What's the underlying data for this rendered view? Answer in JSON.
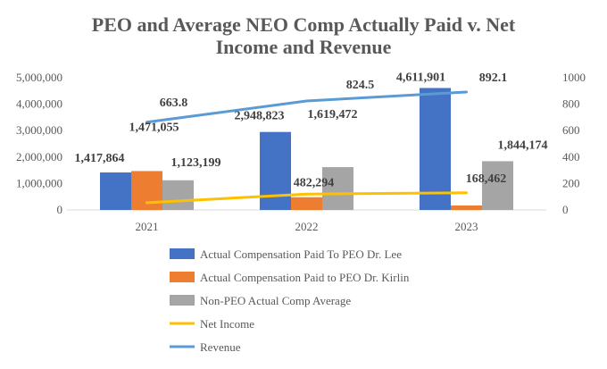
{
  "chart_data": {
    "type": "bar",
    "title_lines": [
      "PEO and Average NEO Comp Actually  Paid v. Net",
      "Income and Revenue"
    ],
    "categories": [
      "2021",
      "2022",
      "2023"
    ],
    "ylim": [
      0,
      5000000
    ],
    "y_ticks": [
      "0",
      "1,000,000",
      "2,000,000",
      "3,000,000",
      "4,000,000",
      "5,000,000"
    ],
    "y2lim": [
      0,
      1000
    ],
    "y2_ticks": [
      "0",
      "200",
      "400",
      "600",
      "800",
      "1000"
    ],
    "grid": false,
    "legend_position": "bottom",
    "series": [
      {
        "name": "Actual Compensation Paid To PEO Dr. Lee",
        "kind": "bar",
        "axis": "left",
        "color": "#4472C4",
        "values": [
          1417864,
          2948823,
          4611901
        ],
        "labels": [
          "1,417,864",
          "2,948,823",
          "4,611,901"
        ]
      },
      {
        "name": "Actual Compensation Paid to PEO Dr. Kirlin",
        "kind": "bar",
        "axis": "left",
        "color": "#ED7D31",
        "values": [
          1471055,
          482294,
          168462
        ],
        "labels": [
          "1,471,055",
          "482,294",
          "168,462"
        ]
      },
      {
        "name": "Non-PEO Actual Comp Average",
        "kind": "bar",
        "axis": "left",
        "color": "#A5A5A5",
        "values": [
          1123199,
          1619472,
          1844174
        ],
        "labels": [
          "1,123,199",
          "1,619,472",
          "1,844,174"
        ]
      },
      {
        "name": "Net Income",
        "kind": "line",
        "axis": "right",
        "color": "#FFC000",
        "values": [
          55,
          120,
          130
        ],
        "labels": []
      },
      {
        "name": "Revenue",
        "kind": "line",
        "axis": "right",
        "color": "#5B9BD5",
        "values": [
          663.8,
          824.5,
          892.1
        ],
        "labels": [
          "663.8",
          "824.5",
          "892.1"
        ]
      }
    ]
  }
}
